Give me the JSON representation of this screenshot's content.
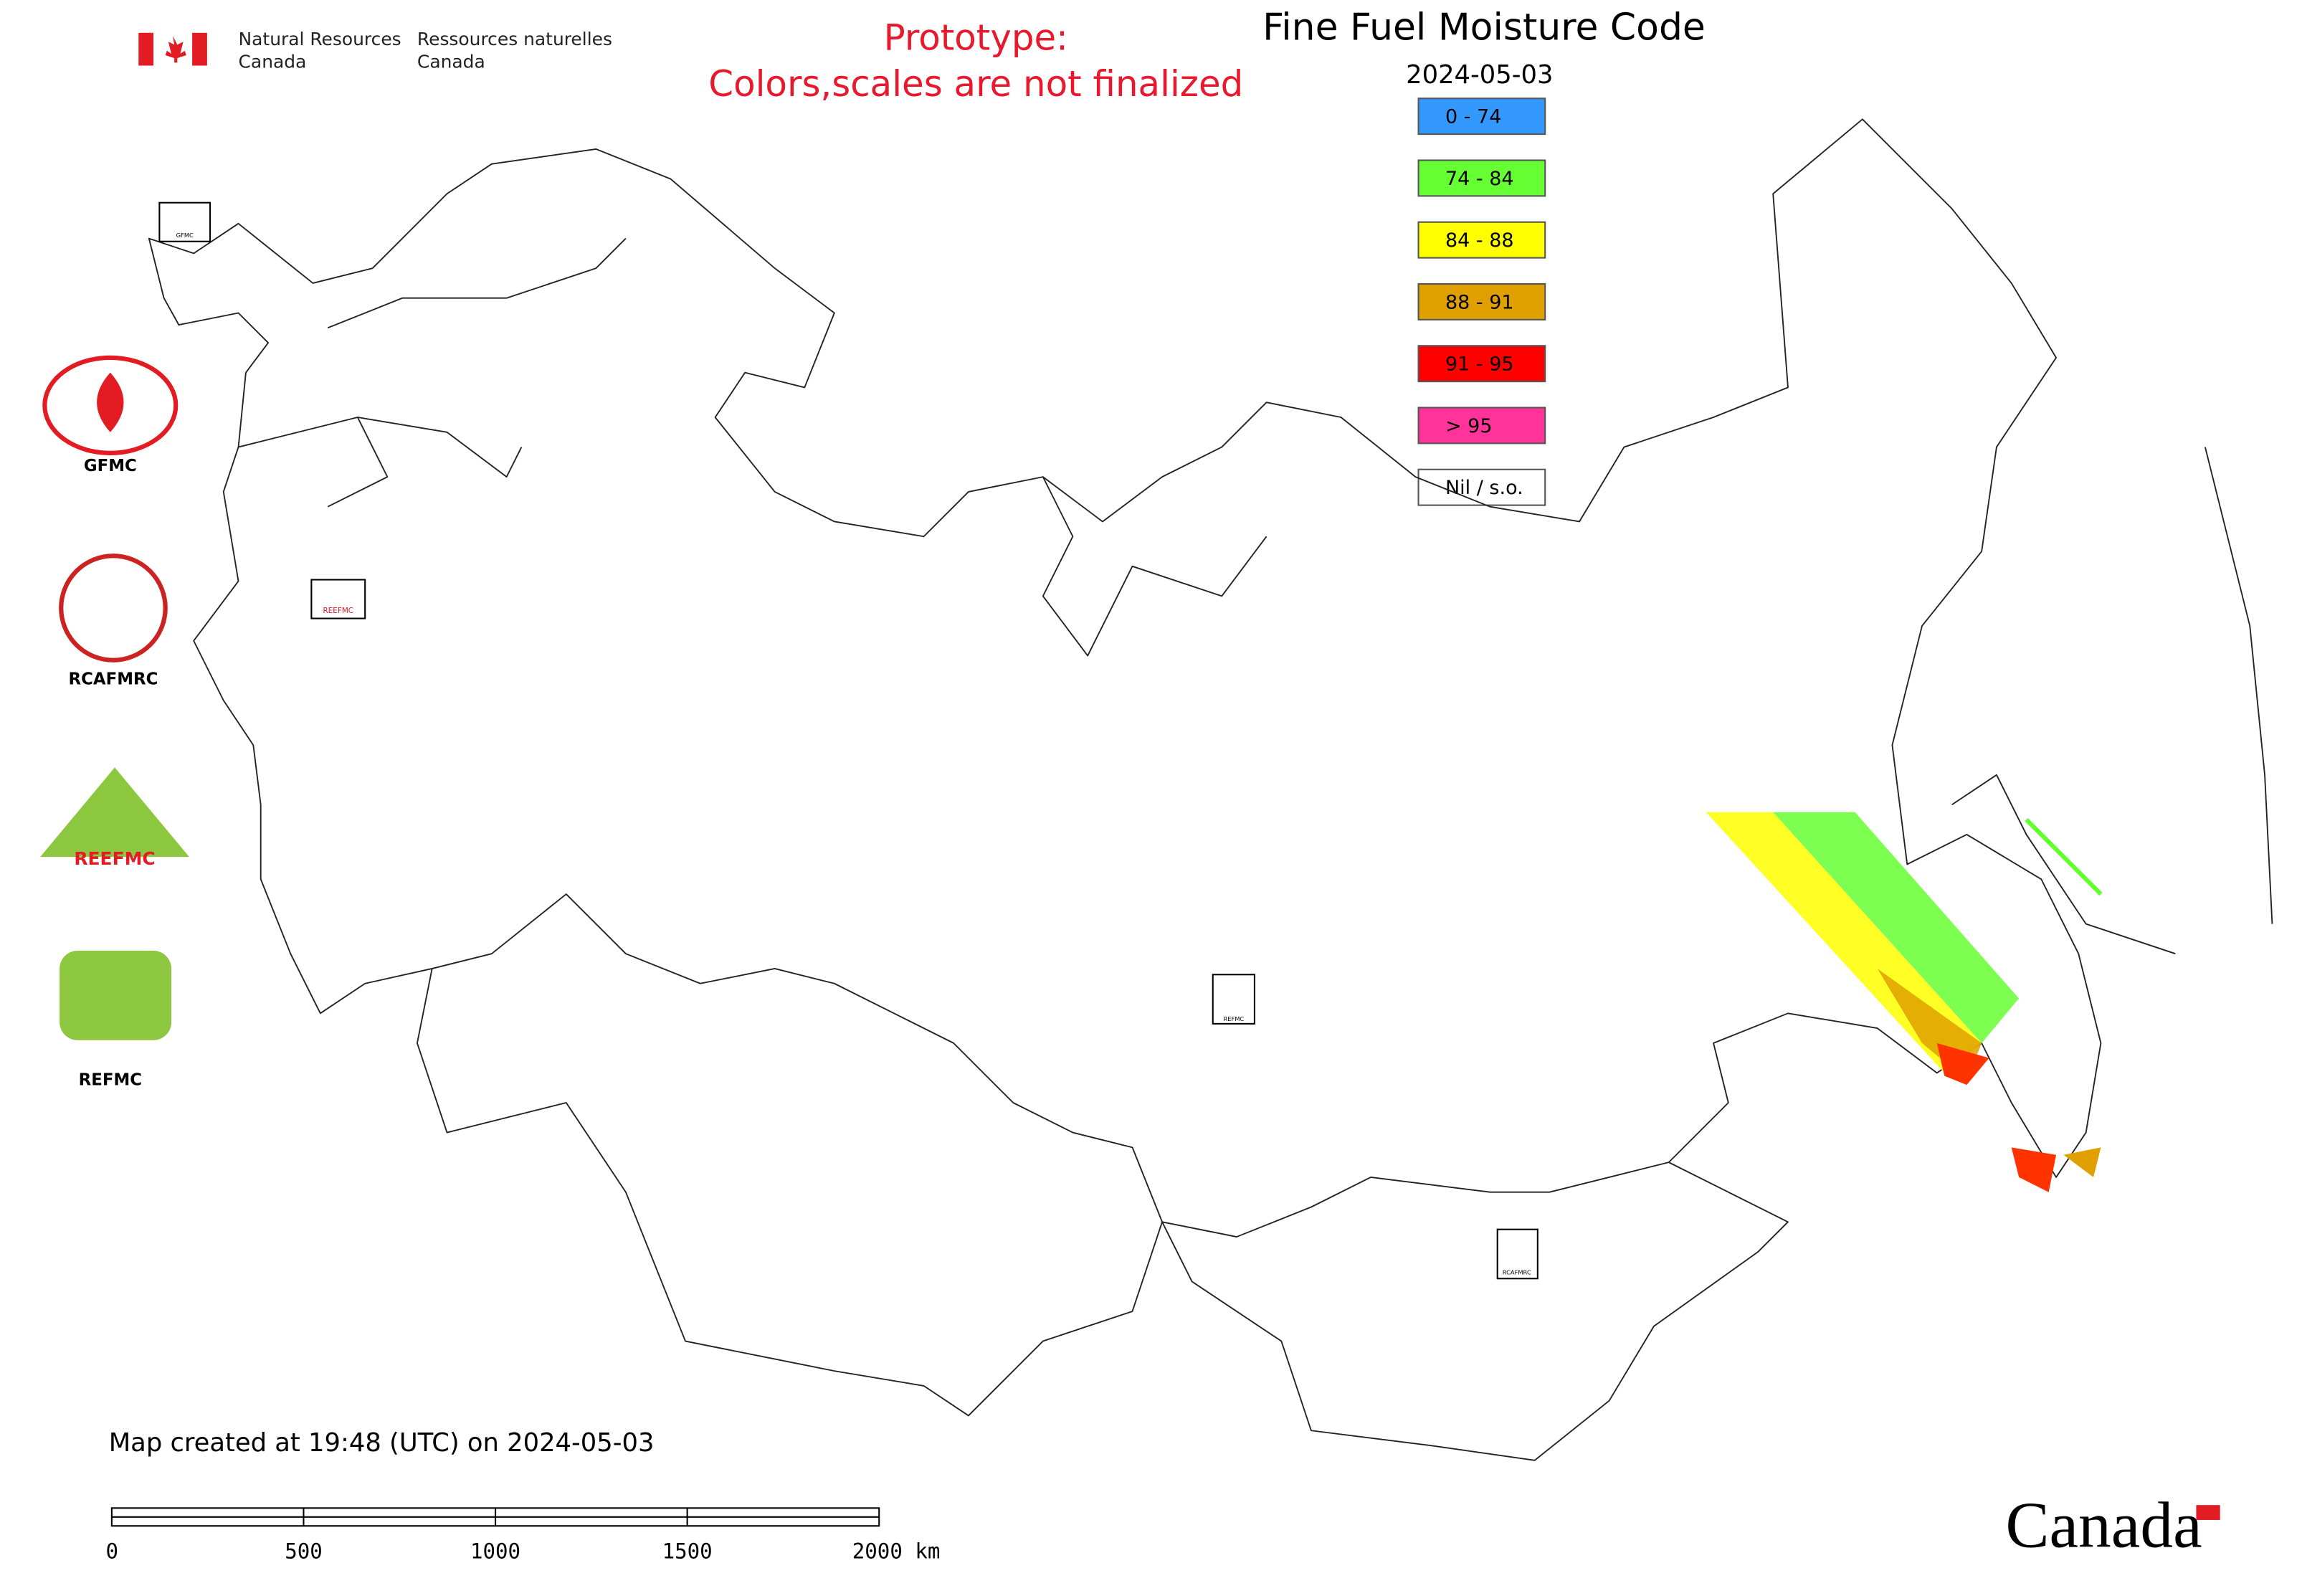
{
  "header": {
    "department_en": [
      "Natural Resources",
      "Canada"
    ],
    "department_fr": [
      "Ressources naturelles",
      "Canada"
    ],
    "notice": [
      "Prototype:",
      "Colors,scales are not finalized"
    ]
  },
  "title": "Fine Fuel Moisture Code",
  "date": "2024-05-03",
  "legend": {
    "items": [
      {
        "label": "0 - 74",
        "color": "#3399ff"
      },
      {
        "label": "74 - 84",
        "color": "#66ff33"
      },
      {
        "label": "84 - 88",
        "color": "#ffff00"
      },
      {
        "label": "88 - 91",
        "color": "#e0a000"
      },
      {
        "label": "91 - 95",
        "color": "#ff0000"
      },
      {
        "label": "> 95",
        "color": "#ff3399"
      },
      {
        "label": "Nil / s.o.",
        "color": "#ffffff"
      }
    ]
  },
  "logos": [
    "GFMC",
    "RCAFMRC",
    "REEFMC",
    "REFMC"
  ],
  "map_markers": [
    "GFMC",
    "REEFMC",
    "REFMC",
    "RCAFMRC"
  ],
  "footer": "Map created at 19:48 (UTC) on 2024-05-03",
  "scale_bar": [
    "0",
    "500",
    "1000",
    "1500",
    "2000 km"
  ],
  "wordmark": "Canada"
}
